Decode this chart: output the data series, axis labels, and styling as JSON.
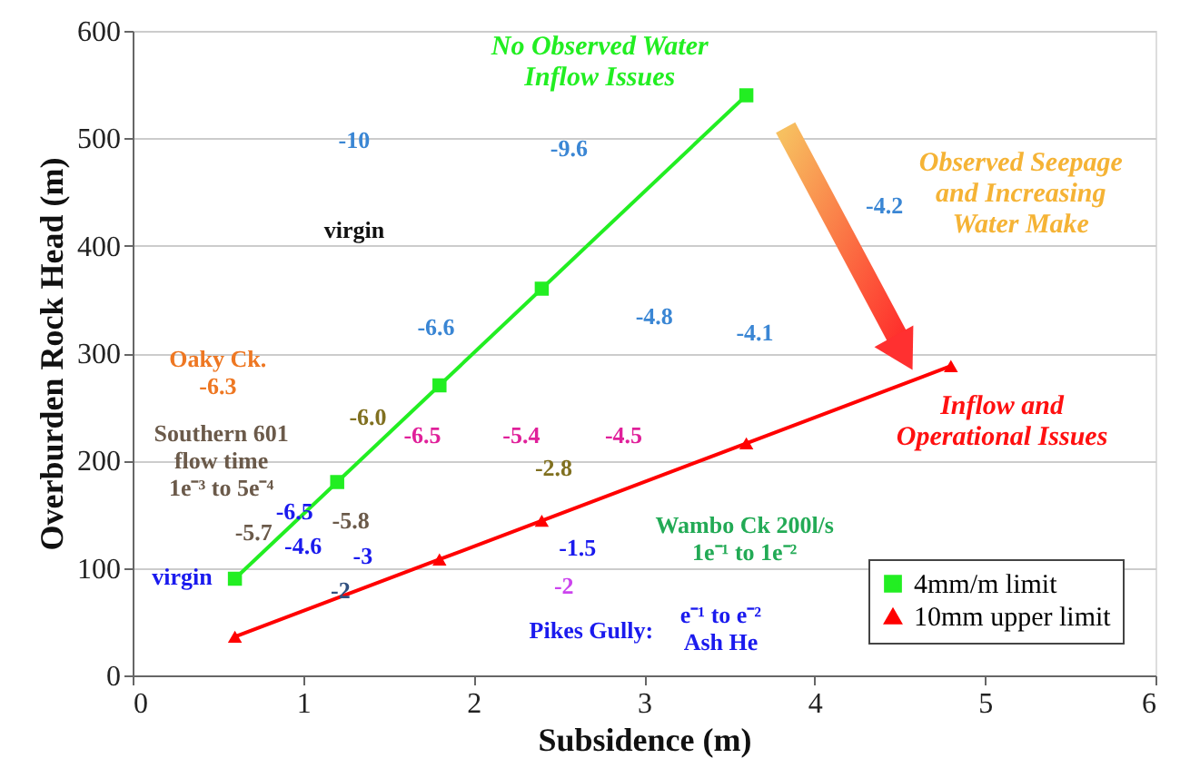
{
  "chart_data": {
    "type": "line",
    "xlabel": "Subsidence (m)",
    "ylabel": "Overburden Rock Head (m)",
    "xlim": [
      0,
      6
    ],
    "xticks": [
      0,
      1,
      2,
      3,
      4,
      5,
      6
    ],
    "ylim": [
      0,
      600
    ],
    "yticks": [
      0,
      100,
      200,
      300,
      400,
      500,
      600
    ],
    "grid": "y",
    "legend": "bottom right",
    "line_style": "solid",
    "series": [
      {
        "name": "4mm/m limit",
        "color": "#22ee22",
        "marker": "square",
        "x": [
          0.6,
          1.2,
          1.8,
          2.4,
          3.6
        ],
        "values": [
          90,
          180,
          270,
          360,
          540
        ]
      },
      {
        "name": "10mm upper limit",
        "color": "#ff0000",
        "marker": "triangle",
        "x": [
          0.6,
          1.8,
          2.4,
          3.6,
          4.8
        ],
        "values": [
          36,
          108,
          144,
          216,
          288
        ]
      }
    ],
    "annotations": [
      "No Observed Water\nInflow Issues",
      "Observed Seepage\nand Increasing\nWater Make",
      "Inflow and\nOperational Issues",
      "-10",
      "-9.6",
      "virgin",
      "-6.6",
      "-4.8",
      "-4.2",
      "-4.1",
      "Oaky Ck.\n-6.3",
      "Southern 601\nflow time\n1e⁻³ to 5e⁻⁴",
      "-6.0",
      "-6.5",
      "-5.4",
      "-4.5",
      "-2.8",
      "-5.7",
      "-6.5",
      "-5.8",
      "-4.6",
      "-3",
      "virgin",
      "-1.5",
      "-2",
      "-2",
      "Wambo Ck 200l/s\n1e⁻¹ to 1e⁻²",
      "Pikes Gully:",
      "e⁻¹ to e⁻²\nAsh He"
    ]
  }
}
